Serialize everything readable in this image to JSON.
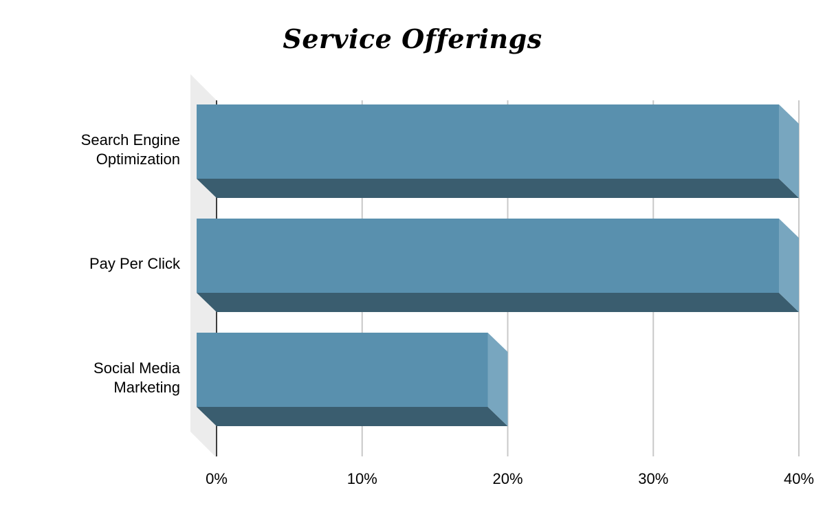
{
  "chart_data": {
    "type": "bar",
    "orientation": "horizontal",
    "title": "Service Offerings",
    "categories": [
      "Search Engine Optimization",
      "Pay Per Click",
      "Social Media Marketing"
    ],
    "category_label_lines": [
      [
        "Search Engine",
        "Optimization"
      ],
      [
        "Pay Per Click"
      ],
      [
        "Social Media",
        "Marketing"
      ]
    ],
    "values": [
      40,
      40,
      20
    ],
    "xlim": [
      0,
      40
    ],
    "x_ticks": [
      "0%",
      "10%",
      "20%",
      "30%",
      "40%"
    ],
    "x_tick_values": [
      0,
      10,
      20,
      30,
      40
    ],
    "grid": true,
    "style": "3d",
    "colors": {
      "bar_front": "#5990ae",
      "bar_bottom": "#3a5d6f",
      "bar_side": "#78a6bf",
      "gridline": "#c8c8c8",
      "axis": "#000000",
      "backwall": "#ececec"
    }
  }
}
